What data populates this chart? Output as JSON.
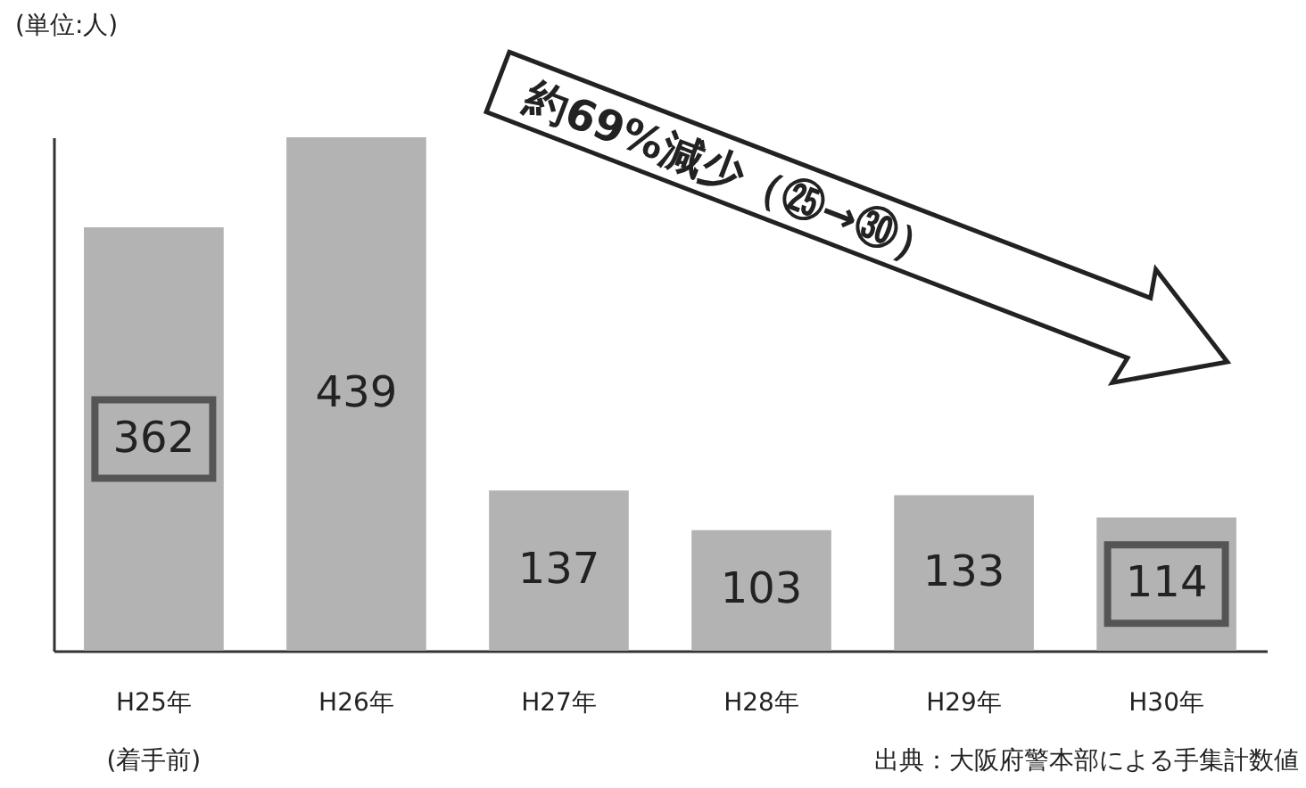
{
  "chart_data": {
    "type": "bar",
    "ylabel": "(単位:人)",
    "categories": [
      "H25年",
      "H26年",
      "H27年",
      "H28年",
      "H29年",
      "H30年"
    ],
    "values": [
      362,
      439,
      137,
      103,
      133,
      114
    ],
    "color": "#b3b3b3",
    "data_labels": true,
    "tick_labels": "x",
    "grid": false,
    "annotations": [
      "約69%減少（㉕→㉚）",
      "(着手前)",
      "出典：大阪府警本部による手集計数値"
    ]
  }
}
